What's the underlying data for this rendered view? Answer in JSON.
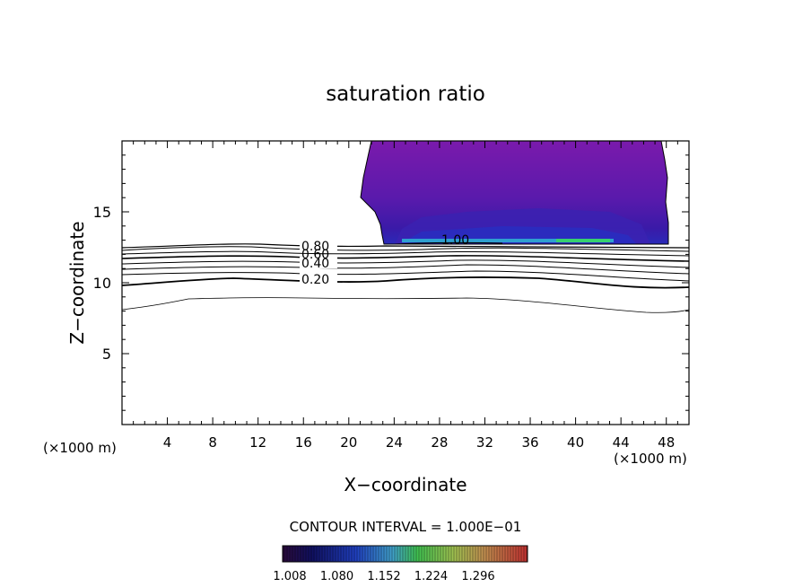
{
  "chart_data": {
    "type": "contour",
    "title": "saturation ratio",
    "xlabel": "X−coordinate",
    "ylabel": "Z−coordinate",
    "x_unit_left": "(×1000 m)",
    "x_unit_right": "(×1000 m)",
    "xlim": [
      0,
      50
    ],
    "ylim": [
      0,
      20
    ],
    "x_ticks": [
      4,
      8,
      12,
      16,
      20,
      24,
      28,
      32,
      36,
      40,
      44,
      48
    ],
    "y_ticks": [
      5,
      10,
      15
    ],
    "contour_interval_text": "CONTOUR INTERVAL = 1.000E−01",
    "contour_labels": [
      "0.80",
      "0.60",
      "0.40",
      "0.20",
      "1.00"
    ],
    "colorbar": {
      "tick_labels": [
        "1.008",
        "1.080",
        "1.152",
        "1.224",
        "1.296"
      ],
      "colors": [
        "#3a0a4a",
        "#1a1a7a",
        "#2a40c0",
        "#3aa0c0",
        "#50c050",
        "#a0c050",
        "#c0a050",
        "#c05040",
        "#b03030"
      ]
    },
    "colors": {
      "supersat_purple": "#7a1bab",
      "supersat_dark": "#3a1aa0",
      "supersat_core": "#2050d0",
      "supersat_peak": "#30d080"
    }
  }
}
